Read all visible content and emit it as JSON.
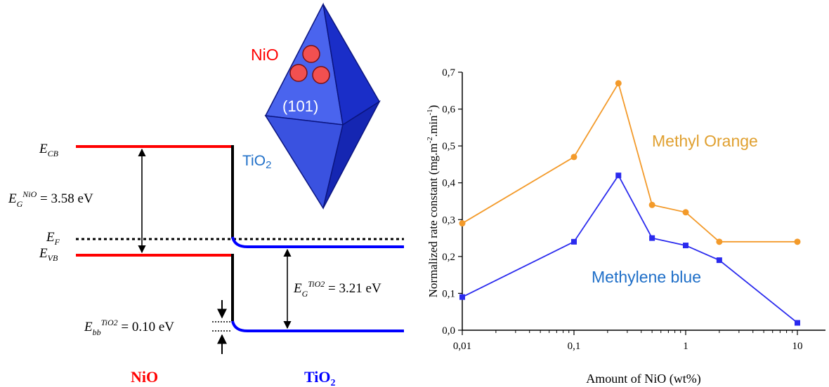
{
  "band_diagram": {
    "e_cb": {
      "main": "E",
      "sub": "CB"
    },
    "e_f": {
      "main": "E",
      "sub": "F"
    },
    "e_vb": {
      "main": "E",
      "sub": "VB"
    },
    "gap_nio": {
      "main": "E",
      "sub": "G",
      "sup": "NiO",
      "value": " = 3.58 eV"
    },
    "gap_tio2": {
      "main": "E",
      "sub": "G",
      "sup": "TiO2",
      "value": " = 3.21 eV"
    },
    "band_bending": {
      "main": "E",
      "sub": "bb",
      "sup": "TiO2",
      "value": " = 0.10 eV"
    },
    "nio_label": "NiO",
    "tio2_label": {
      "main": "TiO",
      "sub": "2"
    },
    "colors": {
      "nio": "#ff0000",
      "tio2": "#0000ff",
      "fermi": "#000000"
    }
  },
  "crystal": {
    "nio_label": "NiO",
    "facet_label": "(101)",
    "tio2_label": {
      "main": "TiO",
      "sub": "2"
    },
    "colors": {
      "face_light": "#4a64ee",
      "face_dark": "#1a2ec8",
      "particle": "#f25050",
      "nio_text": "#ff0000",
      "tio2_text": "#1f6fc8"
    }
  },
  "chart_data": {
    "type": "line",
    "x_scale": "log",
    "xlabel": "Amount of NiO (wt%)",
    "ylabel_main": "Normalized rate constant (mg.m",
    "ylabel_sup1": "-2",
    "ylabel_mid": ".min",
    "ylabel_sup2": "-1",
    "ylabel_end": ")",
    "xlim": [
      0.01,
      10
    ],
    "ylim": [
      0.0,
      0.7
    ],
    "x_ticks": [
      0.01,
      0.1,
      1,
      10
    ],
    "x_tick_labels": [
      "0,01",
      "0,1",
      "1",
      "10"
    ],
    "y_ticks": [
      0.0,
      0.1,
      0.2,
      0.3,
      0.4,
      0.5,
      0.6,
      0.7
    ],
    "y_tick_labels": [
      "0,0",
      "0,1",
      "0,2",
      "0,3",
      "0,4",
      "0,5",
      "0,6",
      "0,7"
    ],
    "grid": false,
    "series": [
      {
        "name": "Methyl Orange",
        "color": "#f39a2a",
        "marker": "circle",
        "x": [
          0.01,
          0.1,
          0.25,
          0.5,
          1,
          2,
          10
        ],
        "y": [
          0.29,
          0.47,
          0.67,
          0.34,
          0.32,
          0.24,
          0.24
        ]
      },
      {
        "name": "Methylene blue",
        "color": "#2a2aee",
        "marker": "square",
        "x": [
          0.01,
          0.1,
          0.25,
          0.5,
          1,
          2,
          10
        ],
        "y": [
          0.09,
          0.24,
          0.42,
          0.25,
          0.23,
          0.19,
          0.02
        ]
      }
    ],
    "series_label_colors": {
      "Methyl Orange": "#e0a030",
      "Methylene blue": "#1f6fc8"
    }
  }
}
